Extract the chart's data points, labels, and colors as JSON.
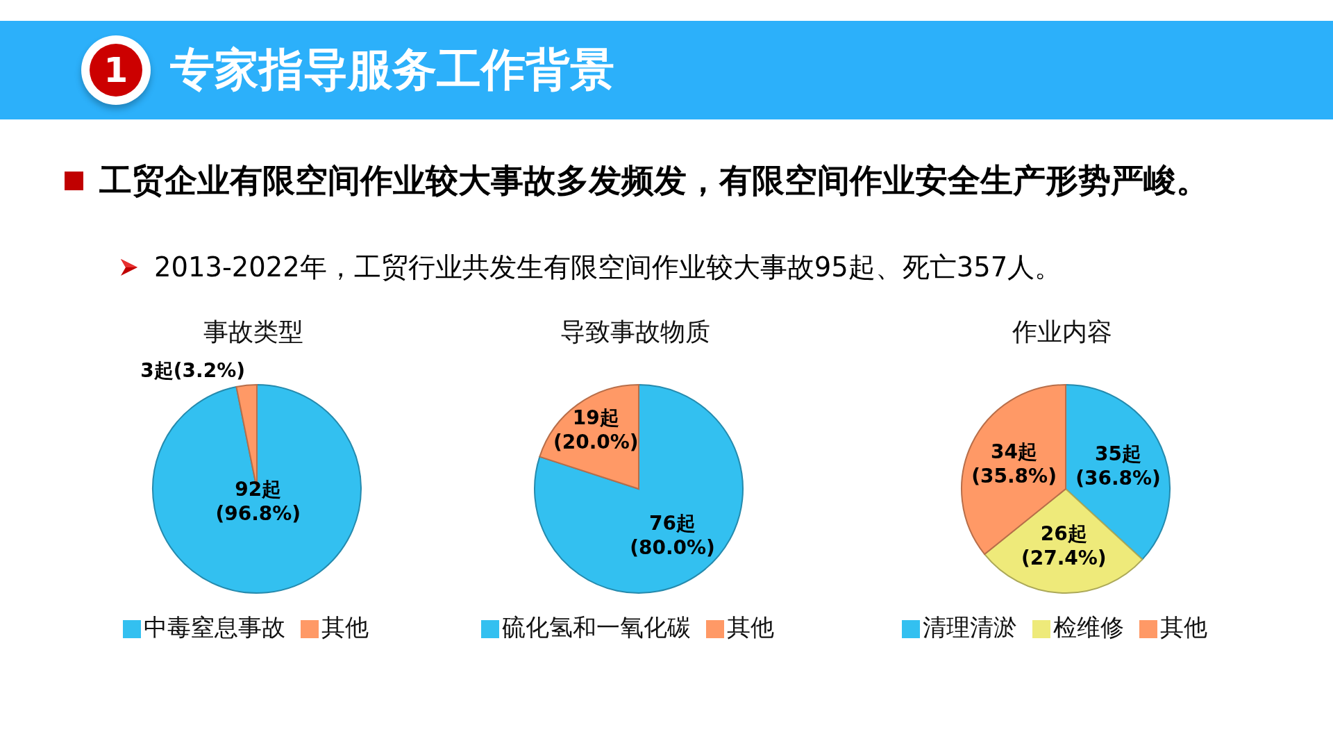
{
  "chart_data": [
    {
      "type": "pie",
      "title": "事故类型",
      "categories": [
        "中毒窒息事故",
        "其他"
      ],
      "values": [
        92,
        3
      ],
      "colors": [
        "#33c0f0",
        "#ff9966"
      ],
      "value_labels": [
        "92起\n(96.8%)",
        "3起(3.2%)"
      ],
      "legend": "bottom",
      "annotations": [
        "1",
        "专家指导服务工作背景",
        "工贸企业有限空间作业较大事故多发频发，有限空间作业安全生产形势严峻。",
        "2013-2022年，工贸行业共发生有限空间作业较大事故95起、死亡357人。"
      ]
    },
    {
      "type": "pie",
      "title": "导致事故物质",
      "categories": [
        "硫化氢和一氧化碳",
        "其他"
      ],
      "values": [
        76,
        19
      ],
      "colors": [
        "#33c0f0",
        "#ff9966"
      ],
      "value_labels": [
        "76起\n(80.0%)",
        "19起\n(20.0%)"
      ],
      "legend": "bottom"
    },
    {
      "type": "pie",
      "title": "作业内容",
      "categories": [
        "清理清淤",
        "检维修",
        "其他"
      ],
      "values": [
        35,
        26,
        34
      ],
      "colors": [
        "#33c0f0",
        "#eeea7a",
        "#ff9966"
      ],
      "value_labels": [
        "35起\n(36.8%)",
        "26起\n(27.4%)",
        "34起\n(35.8%)"
      ],
      "legend": "bottom"
    }
  ]
}
